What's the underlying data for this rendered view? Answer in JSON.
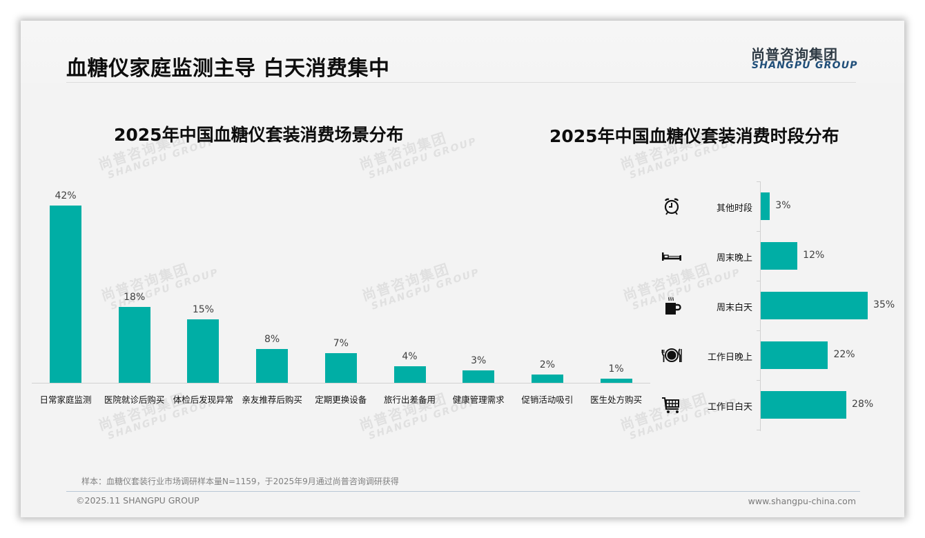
{
  "header": {
    "title": "血糖仪家庭监测主导 白天消费集中",
    "logo_cn": "尚普咨询集团",
    "logo_en": "SHANGPU GROUP"
  },
  "watermark": {
    "cn": "尚普咨询集团",
    "en": "SHANGPU GROUP"
  },
  "colors": {
    "bar": "#00aea5",
    "title": "#0d0d0d",
    "logo_en": "#1f4e79"
  },
  "chart_data": [
    {
      "type": "bar",
      "title": "2025年中国血糖仪套装消费场景分布",
      "categories": [
        "日常家庭监测",
        "医院就诊后购买",
        "体检后发现异常",
        "亲友推荐后购买",
        "定期更换设备",
        "旅行出差备用",
        "健康管理需求",
        "促销活动吸引",
        "医生处方购买"
      ],
      "values": [
        42,
        18,
        15,
        8,
        7,
        4,
        3,
        2,
        1
      ],
      "labels": [
        "42%",
        "18%",
        "15%",
        "8%",
        "7%",
        "4%",
        "3%",
        "2%",
        "1%"
      ],
      "unit": "%",
      "xlabel": "",
      "ylabel": "",
      "grid": false,
      "legend": null
    },
    {
      "type": "bar",
      "orientation": "horizontal",
      "title": "2025年中国血糖仪套装消费时段分布",
      "categories": [
        "其他时段",
        "周末晚上",
        "周末白天",
        "工作日晚上",
        "工作日白天"
      ],
      "icons": [
        "alarm-clock-icon",
        "bed-icon",
        "coffee-cup-icon",
        "plate-cutlery-icon",
        "shopping-cart-icon"
      ],
      "values": [
        3,
        12,
        35,
        22,
        28
      ],
      "labels": [
        "3%",
        "12%",
        "35%",
        "22%",
        "28%"
      ],
      "unit": "%",
      "xlabel": "",
      "ylabel": "",
      "grid": false,
      "legend": null
    }
  ],
  "footer": {
    "note": "样本：血糖仪套装行业市场调研样本量N=1159，于2025年9月通过尚普咨询调研获得",
    "copyright": "©2025.11 SHANGPU GROUP",
    "website": "www.shangpu-china.com"
  }
}
